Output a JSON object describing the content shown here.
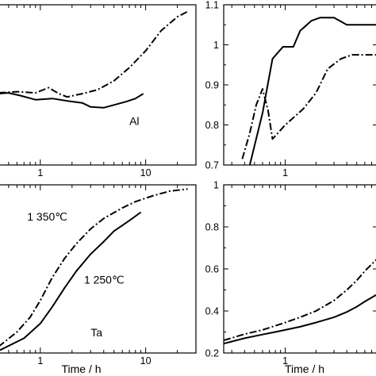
{
  "chart_data": [
    {
      "type": "line",
      "panel": "top-left",
      "x_scale": "log",
      "xlim": [
        0.4,
        30
      ],
      "ylim": [
        0.7,
        1.1
      ],
      "x_ticks": [
        1,
        10
      ],
      "y_ticks": [],
      "annotations": [
        {
          "text": "Al",
          "x": 7,
          "y": 0.8
        }
      ],
      "series": [
        {
          "style": "solid",
          "x": [
            0.3,
            0.5,
            0.65,
            0.9,
            1.3,
            1.8,
            2.5,
            3.0,
            4.0,
            5.0,
            6.5,
            8.0,
            9.5
          ],
          "y": [
            0.876,
            0.88,
            0.873,
            0.863,
            0.866,
            0.86,
            0.855,
            0.845,
            0.843,
            0.85,
            0.858,
            0.866,
            0.878
          ]
        },
        {
          "style": "dash-dot",
          "x": [
            0.3,
            0.6,
            0.9,
            1.2,
            1.5,
            1.8,
            2.5,
            3.5,
            5.0,
            7.0,
            10.0,
            14.0,
            20.0,
            25.0
          ],
          "y": [
            0.878,
            0.883,
            0.88,
            0.893,
            0.878,
            0.87,
            0.878,
            0.888,
            0.91,
            0.943,
            0.985,
            1.035,
            1.07,
            1.083
          ]
        }
      ]
    },
    {
      "type": "line",
      "panel": "top-right",
      "x_scale": "log",
      "xlim": [
        0.25,
        8
      ],
      "ylim": [
        0.7,
        1.1
      ],
      "x_ticks": [
        1
      ],
      "y_ticks": [
        0.7,
        0.8,
        0.9,
        1,
        1.1
      ],
      "series": [
        {
          "style": "solid",
          "x": [
            0.45,
            0.6,
            0.75,
            0.95,
            1.2,
            1.4,
            1.8,
            2.2,
            3.0,
            4.0,
            6.0,
            8.0
          ],
          "y": [
            0.7,
            0.83,
            0.965,
            0.995,
            0.995,
            1.035,
            1.06,
            1.068,
            1.068,
            1.05,
            1.05,
            1.05
          ]
        },
        {
          "style": "dash-dot",
          "x": [
            0.38,
            0.45,
            0.52,
            0.6,
            0.68,
            0.75,
            1.0,
            1.5,
            2.0,
            2.6,
            3.5,
            4.5,
            6.0,
            8.0
          ],
          "y": [
            0.715,
            0.78,
            0.85,
            0.89,
            0.835,
            0.765,
            0.8,
            0.84,
            0.88,
            0.94,
            0.965,
            0.975,
            0.975,
            0.975
          ]
        }
      ]
    },
    {
      "type": "line",
      "panel": "bottom-left",
      "x_scale": "log",
      "xlim": [
        0.4,
        30
      ],
      "ylim": [
        0.2,
        1.0
      ],
      "x_ticks": [
        1,
        10
      ],
      "y_ticks": [],
      "xlabel": "Time / h",
      "annotations": [
        {
          "text": "1 350℃",
          "x": 0.75,
          "y": 0.83
        },
        {
          "text": "1 250℃",
          "x": 2.6,
          "y": 0.53
        },
        {
          "text": "Ta",
          "x": 3.0,
          "y": 0.28
        }
      ],
      "series": [
        {
          "style": "dash-dot",
          "x": [
            0.4,
            0.6,
            0.8,
            1.0,
            1.3,
            1.7,
            2.2,
            3.0,
            4.0,
            6.0,
            8.0,
            12.0,
            17.0,
            25.0
          ],
          "y": [
            0.23,
            0.3,
            0.37,
            0.45,
            0.56,
            0.65,
            0.72,
            0.79,
            0.84,
            0.89,
            0.92,
            0.95,
            0.97,
            0.98
          ]
        },
        {
          "style": "solid",
          "x": [
            0.4,
            0.7,
            1.0,
            1.3,
            1.7,
            2.2,
            3.0,
            4.0,
            5.0,
            7.0,
            9.0
          ],
          "y": [
            0.21,
            0.27,
            0.34,
            0.42,
            0.51,
            0.59,
            0.67,
            0.73,
            0.78,
            0.83,
            0.87
          ]
        }
      ]
    },
    {
      "type": "line",
      "panel": "bottom-right",
      "x_scale": "log",
      "xlim": [
        0.25,
        8
      ],
      "ylim": [
        0.2,
        1.0
      ],
      "x_ticks": [
        1
      ],
      "y_ticks": [
        0.2,
        0.4,
        0.6,
        0.8,
        1
      ],
      "xlabel": "Time / h",
      "series": [
        {
          "style": "dash-dot",
          "x": [
            0.25,
            0.4,
            0.6,
            0.8,
            1.0,
            1.4,
            2.0,
            3.0,
            4.0,
            5.0,
            6.0,
            8.0
          ],
          "y": [
            0.26,
            0.29,
            0.31,
            0.33,
            0.345,
            0.37,
            0.4,
            0.45,
            0.5,
            0.545,
            0.59,
            0.65
          ]
        },
        {
          "style": "solid",
          "x": [
            0.25,
            0.4,
            0.6,
            0.8,
            1.0,
            1.4,
            2.0,
            3.0,
            4.0,
            5.0,
            6.0,
            8.0
          ],
          "y": [
            0.245,
            0.27,
            0.288,
            0.3,
            0.31,
            0.325,
            0.345,
            0.37,
            0.395,
            0.42,
            0.445,
            0.48
          ]
        }
      ]
    }
  ]
}
